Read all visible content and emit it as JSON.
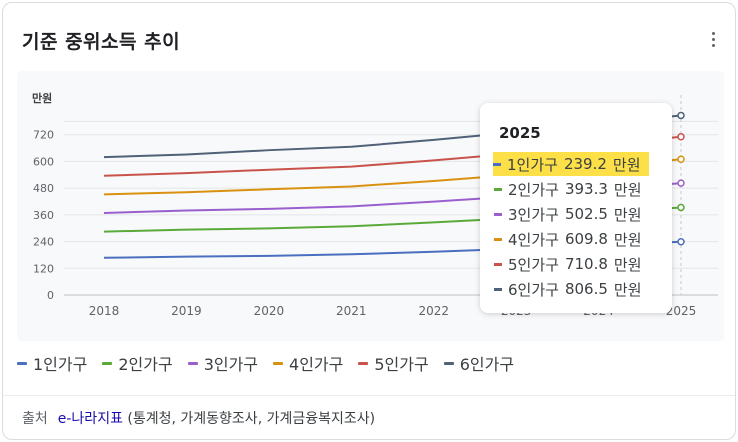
{
  "header": {
    "title": "기준 중위소득 추이"
  },
  "chart_data": {
    "type": "line",
    "unit_label": "만원",
    "x": [
      "2018",
      "2019",
      "2020",
      "2021",
      "2022",
      "2023",
      "2024",
      "2025"
    ],
    "yticks": [
      "0",
      "120",
      "240",
      "360",
      "480",
      "600",
      "720"
    ],
    "ylim": [
      0,
      840
    ],
    "grid": true,
    "legend_position": "bottom",
    "series": [
      {
        "name": "1인가구",
        "color": "#4a6fc0",
        "values": [
          167.2,
          172.4,
          175.7,
          182.8,
          194.5,
          207.8,
          222.8,
          239.2
        ]
      },
      {
        "name": "2인가구",
        "color": "#5aaa3a",
        "values": [
          284.7,
          293.5,
          299.2,
          308.9,
          326.0,
          345.6,
          368.3,
          393.3
        ]
      },
      {
        "name": "3인가구",
        "color": "#9a5fcf",
        "values": [
          368.3,
          379.7,
          387.1,
          398.3,
          419.4,
          443.5,
          471.4,
          502.5
        ]
      },
      {
        "name": "4인가구",
        "color": "#d9920f",
        "values": [
          451.9,
          461.4,
          474.9,
          487.6,
          512.1,
          540.1,
          573.0,
          609.8
        ]
      },
      {
        "name": "5인가구",
        "color": "#c9534a",
        "values": [
          535.5,
          547.5,
          562.7,
          576.6,
          604.6,
          636.2,
          673.0,
          710.8
        ]
      },
      {
        "name": "6인가구",
        "color": "#4f6278",
        "values": [
          619.1,
          631.1,
          650.5,
          665.8,
          696.9,
          731.0,
          771.0,
          806.5
        ]
      }
    ]
  },
  "tooltip": {
    "year": "2025",
    "unit": "만원",
    "rows": [
      {
        "label": "1인가구",
        "value": "239.2",
        "highlighted": true
      },
      {
        "label": "2인가구",
        "value": "393.3"
      },
      {
        "label": "3인가구",
        "value": "502.5"
      },
      {
        "label": "4인가구",
        "value": "609.8"
      },
      {
        "label": "5인가구",
        "value": "710.8"
      },
      {
        "label": "6인가구",
        "value": "806.5"
      }
    ]
  },
  "source": {
    "label": "출처",
    "link_text": "e-나라지표",
    "detail": "(통계청, 가계동향조사, 가계금융복지조사)"
  },
  "icons": {
    "menu": "more-vert-icon"
  }
}
